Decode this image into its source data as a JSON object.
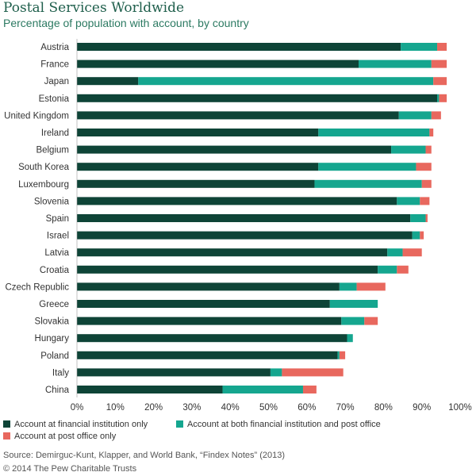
{
  "colors": {
    "financial_only": "#0e4437",
    "both": "#15a68f",
    "post_only": "#e8685e",
    "axis_text": "#333333"
  },
  "chart_data": {
    "type": "bar",
    "orientation": "horizontal",
    "stacked": true,
    "title": "Postal Services Worldwide",
    "subtitle": "Percentage of population with account, by country",
    "categories": [
      "Austria",
      "France",
      "Japan",
      "Estonia",
      "United Kingdom",
      "Ireland",
      "Belgium",
      "South Korea",
      "Luxembourg",
      "Slovenia",
      "Spain",
      "Israel",
      "Latvia",
      "Croatia",
      "Czech Republic",
      "Greece",
      "Slovakia",
      "Hungary",
      "Poland",
      "Italy",
      "China"
    ],
    "series": [
      {
        "name": "Account at financial institution only",
        "values": [
          84.5,
          73.5,
          16,
          94,
          84,
          63,
          82,
          63,
          62,
          83.5,
          87,
          87.5,
          81,
          78.5,
          68.5,
          66,
          69,
          70.5,
          68,
          50.5,
          38
        ]
      },
      {
        "name": "Account at both financial institution and post office",
        "values": [
          9.5,
          19,
          77,
          0.5,
          8.5,
          29,
          9,
          25.5,
          28,
          6,
          4,
          2,
          4,
          5,
          4.5,
          12.5,
          6,
          1.5,
          0.5,
          3,
          21
        ]
      },
      {
        "name": "Account at post office only",
        "values": [
          2.5,
          4,
          3.5,
          2,
          2.5,
          1,
          1.5,
          4,
          2.5,
          2.5,
          0.5,
          1,
          5,
          3,
          7.5,
          0,
          3.5,
          0,
          1.5,
          16,
          3.5
        ]
      }
    ],
    "xlim": [
      0,
      100
    ],
    "xticks": [
      "0%",
      "10%",
      "20%",
      "30%",
      "40%",
      "50%",
      "60%",
      "70%",
      "80%",
      "90%",
      "100%"
    ],
    "xlabel": "",
    "ylabel": "",
    "grid": false,
    "legend_position": "bottom"
  },
  "legend": [
    "Account at financial institution only",
    "Account at both financial institution and post office",
    "Account at post office only"
  ],
  "source": "Source: Demirguc-Kunt, Klapper, and World Bank, “Findex Notes” (2013)",
  "copyright": "© 2014 The Pew Charitable Trusts"
}
